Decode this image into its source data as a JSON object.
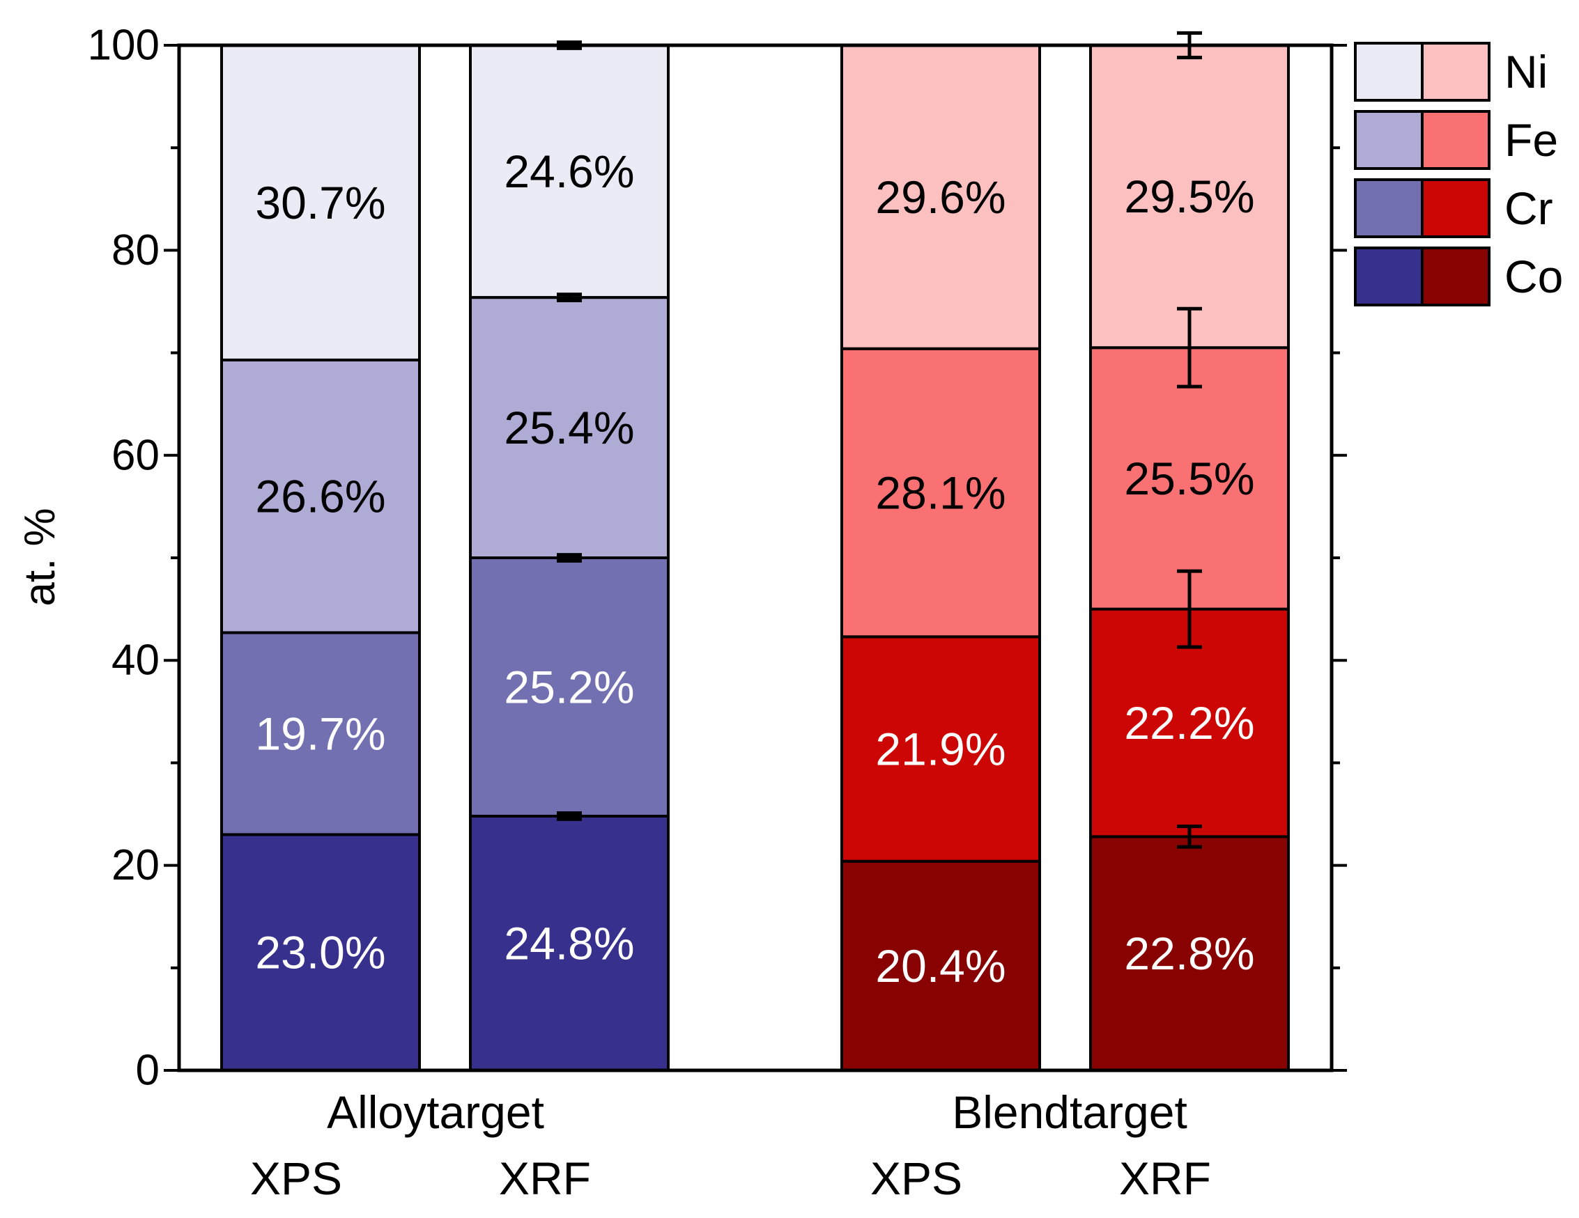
{
  "chart_data": {
    "type": "bar",
    "stacked": true,
    "title": "",
    "xlabel": "",
    "ylabel": "at. %",
    "ylim": [
      0,
      100
    ],
    "yticks": [
      "0",
      "20",
      "40",
      "60",
      "80",
      "100"
    ],
    "legend": {
      "position": "top-right",
      "entries": [
        {
          "label": "Ni",
          "alloy_color": "#ebebf5",
          "blend_color": "#fbc0bf"
        },
        {
          "label": "Fe",
          "alloy_color": "#aeabd5",
          "blend_color": "#f97172"
        },
        {
          "label": "Cr",
          "alloy_color": "#7270b0",
          "blend_color": "#cc0605"
        },
        {
          "label": "Co",
          "alloy_color": "#38308d",
          "blend_color": "#890202"
        }
      ]
    },
    "components": [
      "Co",
      "Cr",
      "Fe",
      "Ni"
    ],
    "groups": [
      {
        "name": "Alloytarget",
        "bars": [
          {
            "name": "XPS",
            "segments": [
              {
                "component": "Co",
                "value": 23.0,
                "label": "23.0%",
                "color": "#38308d",
                "text_color": "#ffffff"
              },
              {
                "component": "Cr",
                "value": 19.7,
                "label": "19.7%",
                "color": "#7270b0",
                "text_color": "#ffffff"
              },
              {
                "component": "Fe",
                "value": 26.6,
                "label": "26.6%",
                "color": "#aeabd5",
                "text_color": "#000000"
              },
              {
                "component": "Ni",
                "value": 30.7,
                "label": "30.7%",
                "color": "#ebebf5",
                "text_color": "#000000"
              }
            ]
          },
          {
            "name": "XRF",
            "segments": [
              {
                "component": "Co",
                "value": 24.8,
                "label": "24.8%",
                "color": "#38308d",
                "text_color": "#ffffff",
                "error": 0.3
              },
              {
                "component": "Cr",
                "value": 25.2,
                "label": "25.2%",
                "color": "#7270b0",
                "text_color": "#ffffff",
                "error": 0.3
              },
              {
                "component": "Fe",
                "value": 25.4,
                "label": "25.4%",
                "color": "#aeabd5",
                "text_color": "#000000",
                "error": 0.3
              },
              {
                "component": "Ni",
                "value": 24.6,
                "label": "24.6%",
                "color": "#ebebf5",
                "text_color": "#000000",
                "error": 0.3
              }
            ]
          }
        ]
      },
      {
        "name": "Blendtarget",
        "bars": [
          {
            "name": "XPS",
            "segments": [
              {
                "component": "Co",
                "value": 20.4,
                "label": "20.4%",
                "color": "#890202",
                "text_color": "#ffffff"
              },
              {
                "component": "Cr",
                "value": 21.9,
                "label": "21.9%",
                "color": "#cc0605",
                "text_color": "#ffffff"
              },
              {
                "component": "Fe",
                "value": 28.1,
                "label": "28.1%",
                "color": "#f97172",
                "text_color": "#000000"
              },
              {
                "component": "Ni",
                "value": 29.6,
                "label": "29.6%",
                "color": "#fbc0bf",
                "text_color": "#000000"
              }
            ]
          },
          {
            "name": "XRF",
            "segments": [
              {
                "component": "Co",
                "value": 22.8,
                "label": "22.8%",
                "color": "#890202",
                "text_color": "#ffffff",
                "error": 1.0
              },
              {
                "component": "Cr",
                "value": 22.2,
                "label": "22.2%",
                "color": "#cc0605",
                "text_color": "#ffffff",
                "error": 3.7
              },
              {
                "component": "Fe",
                "value": 25.5,
                "label": "25.5%",
                "color": "#f97172",
                "text_color": "#000000",
                "error": 3.8
              },
              {
                "component": "Ni",
                "value": 29.5,
                "label": "29.5%",
                "color": "#fbc0bf",
                "text_color": "#000000",
                "error": 1.2
              }
            ]
          }
        ]
      }
    ]
  }
}
